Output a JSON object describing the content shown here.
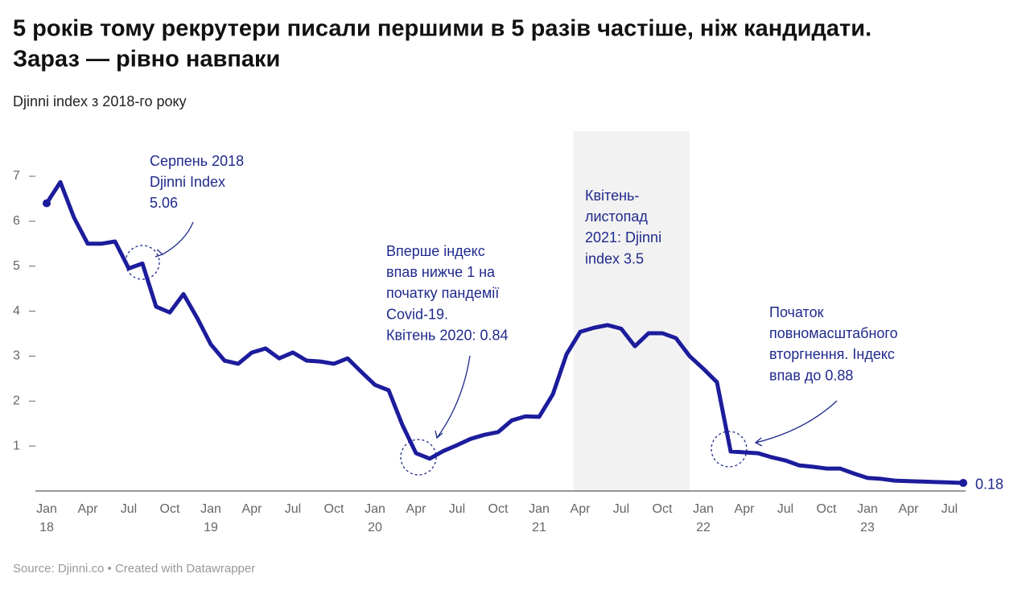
{
  "chart_data": {
    "type": "line",
    "title": [
      "5 років тому рекрутери писали першими в 5 разів частіше, ніж кандидати.",
      "Зараз — рівно навпаки"
    ],
    "subtitle": "Djinni index з 2018-го року",
    "source": "Source: Djinni.co • Created with Datawrapper",
    "x": [
      "2018-01",
      "2018-02",
      "2018-03",
      "2018-04",
      "2018-05",
      "2018-06",
      "2018-07",
      "2018-08",
      "2018-09",
      "2018-10",
      "2018-11",
      "2018-12",
      "2019-01",
      "2019-02",
      "2019-03",
      "2019-04",
      "2019-05",
      "2019-06",
      "2019-07",
      "2019-08",
      "2019-09",
      "2019-10",
      "2019-11",
      "2019-12",
      "2020-01",
      "2020-02",
      "2020-03",
      "2020-04",
      "2020-05",
      "2020-06",
      "2020-07",
      "2020-08",
      "2020-09",
      "2020-10",
      "2020-11",
      "2020-12",
      "2021-01",
      "2021-02",
      "2021-03",
      "2021-04",
      "2021-05",
      "2021-06",
      "2021-07",
      "2021-08",
      "2021-09",
      "2021-10",
      "2021-11",
      "2021-12",
      "2022-01",
      "2022-02",
      "2022-03",
      "2022-04",
      "2022-05",
      "2022-06",
      "2022-07",
      "2022-08",
      "2022-09",
      "2022-10",
      "2022-11",
      "2022-12",
      "2023-01",
      "2023-02",
      "2023-03",
      "2023-04",
      "2023-05",
      "2023-06",
      "2023-07",
      "2023-08"
    ],
    "series": [
      {
        "name": "Djinni index",
        "color": "#1c1c9c",
        "values": [
          6.4,
          6.87,
          6.08,
          5.5,
          5.5,
          5.55,
          4.95,
          5.06,
          4.1,
          3.97,
          4.38,
          3.85,
          3.26,
          2.9,
          2.83,
          3.08,
          3.17,
          2.95,
          3.08,
          2.9,
          2.88,
          2.83,
          2.95,
          2.65,
          2.36,
          2.24,
          1.47,
          0.84,
          0.72,
          0.89,
          1.02,
          1.16,
          1.25,
          1.31,
          1.57,
          1.66,
          1.65,
          2.15,
          3.04,
          3.54,
          3.63,
          3.69,
          3.61,
          3.22,
          3.51,
          3.51,
          3.4,
          3.0,
          2.72,
          2.42,
          0.88,
          0.86,
          0.84,
          0.75,
          0.68,
          0.57,
          0.54,
          0.5,
          0.5,
          0.39,
          0.29,
          0.27,
          0.23,
          0.22,
          0.21,
          0.2,
          0.19,
          0.18
        ]
      }
    ],
    "ylim": [
      0,
      7
    ],
    "yticks": [
      1,
      2,
      3,
      4,
      5,
      6,
      7
    ],
    "grid": false,
    "xticks": [
      {
        "value": "2018-01",
        "label": "Jan",
        "year": "18"
      },
      {
        "value": "2018-04",
        "label": "Apr"
      },
      {
        "value": "2018-07",
        "label": "Jul"
      },
      {
        "value": "2018-10",
        "label": "Oct"
      },
      {
        "value": "2019-01",
        "label": "Jan",
        "year": "19"
      },
      {
        "value": "2019-04",
        "label": "Apr"
      },
      {
        "value": "2019-07",
        "label": "Jul"
      },
      {
        "value": "2019-10",
        "label": "Oct"
      },
      {
        "value": "2020-01",
        "label": "Jan",
        "year": "20"
      },
      {
        "value": "2020-04",
        "label": "Apr"
      },
      {
        "value": "2020-07",
        "label": "Jul"
      },
      {
        "value": "2020-10",
        "label": "Oct"
      },
      {
        "value": "2021-01",
        "label": "Jan",
        "year": "21"
      },
      {
        "value": "2021-04",
        "label": "Apr"
      },
      {
        "value": "2021-07",
        "label": "Jul"
      },
      {
        "value": "2021-10",
        "label": "Oct"
      },
      {
        "value": "2022-01",
        "label": "Jan",
        "year": "22"
      },
      {
        "value": "2022-04",
        "label": "Apr"
      },
      {
        "value": "2022-07",
        "label": "Jul"
      },
      {
        "value": "2022-10",
        "label": "Oct"
      },
      {
        "value": "2023-01",
        "label": "Jan",
        "year": "23"
      },
      {
        "value": "2023-04",
        "label": "Apr"
      },
      {
        "value": "2023-07",
        "label": "Jul"
      }
    ],
    "highlight_range": [
      "2021-04",
      "2021-11"
    ],
    "annotations": [
      {
        "lines": [
          "Серпень 2018",
          "Djinni Index",
          "5.06"
        ]
      },
      {
        "lines": [
          "Вперше індекс",
          "впав нижче 1 на",
          "початку пандемії",
          "Covid-19.",
          "Квітень 2020: 0.84"
        ]
      },
      {
        "lines": [
          "Квітень-",
          "листопад",
          "2021: Djinni",
          "index 3.5"
        ]
      },
      {
        "lines": [
          "Початок",
          "повномасштабного",
          "вторгнення. Індекс",
          "впав до 0.88"
        ]
      }
    ]
  }
}
